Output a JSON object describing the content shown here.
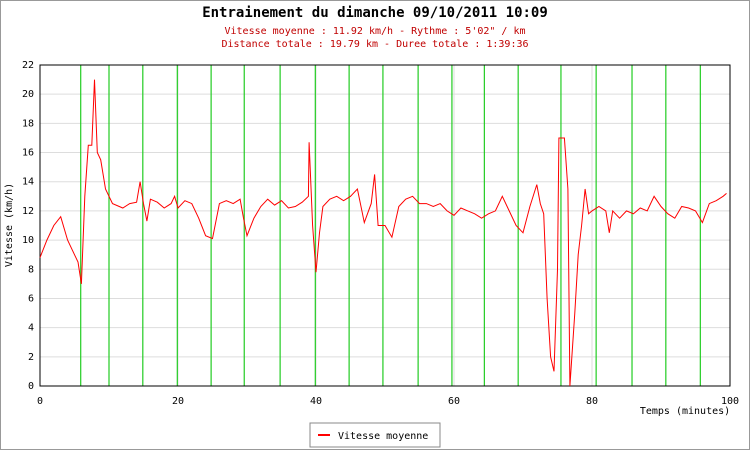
{
  "chart_data": {
    "type": "line",
    "title": "Entrainement du dimanche 09/10/2011 10:09",
    "subtitle": [
      "Vitesse moyenne : 11.92 km/h - Rythme : 5'02\" / km",
      "Distance totale : 19.79 km - Duree totale : 1:39:36"
    ],
    "x_label": "Temps (minutes)",
    "y_label": "Vitesse (km/h)",
    "xlim": [
      0,
      100
    ],
    "xticks": [
      0,
      20,
      40,
      60,
      80,
      100
    ],
    "ylim": [
      0,
      22
    ],
    "yticks": [
      0,
      2,
      4,
      6,
      8,
      10,
      12,
      14,
      16,
      18,
      20,
      22
    ],
    "grid": true,
    "markers_x": [
      5.9,
      10,
      14.9,
      19.9,
      24.8,
      29.6,
      34.8,
      39.9,
      44.8,
      49.7,
      54.8,
      59.7,
      64.4,
      69.3,
      75.5,
      80.6,
      85.8,
      90.7,
      95.7
    ],
    "marker_color": "#22cc22",
    "x": [
      0,
      1,
      2,
      3,
      4,
      5,
      5.5,
      6,
      6.5,
      7,
      7.5,
      7.9,
      8.3,
      8.8,
      9.5,
      10.5,
      12,
      13,
      14,
      14.5,
      15,
      15.5,
      16,
      17,
      18,
      19,
      19.5,
      20,
      21,
      22,
      23,
      24,
      25,
      26,
      27,
      28,
      29,
      29.5,
      30,
      31,
      32,
      33,
      34,
      35,
      36,
      37,
      38,
      38.9,
      39,
      39.5,
      40,
      40.5,
      41,
      42,
      43,
      44,
      45,
      46,
      47,
      48,
      48.5,
      49,
      50,
      51,
      52,
      53,
      54,
      55,
      56,
      57,
      58,
      59,
      60,
      61,
      62,
      63,
      64,
      65,
      66,
      67,
      68,
      69,
      70,
      71,
      72,
      72.5,
      73,
      73.5,
      74,
      74.5,
      75,
      75.2,
      76,
      76.5,
      76.8,
      77.5,
      78,
      78.5,
      79,
      79.5,
      80,
      81,
      82,
      82.5,
      83,
      84,
      85,
      86,
      87,
      88,
      89,
      90,
      91,
      92,
      93,
      94,
      95,
      96,
      97,
      98,
      99,
      99.5
    ],
    "series": [
      {
        "name": "Vitesse moyenne",
        "color": "#ff0000",
        "values": [
          8.8,
          10,
          11,
          11.6,
          10,
          9,
          8.5,
          7,
          13,
          16.5,
          16.5,
          21,
          16,
          15.5,
          13.5,
          12.5,
          12.2,
          12.5,
          12.6,
          14,
          12.5,
          11.3,
          12.8,
          12.6,
          12.2,
          12.5,
          13,
          12.2,
          12.7,
          12.5,
          11.5,
          10.3,
          10.1,
          12.5,
          12.7,
          12.5,
          12.8,
          11.5,
          10.3,
          11.5,
          12.3,
          12.8,
          12.4,
          12.7,
          12.2,
          12.3,
          12.6,
          13,
          16.7,
          11,
          7.8,
          10.5,
          12.3,
          12.8,
          13,
          12.7,
          13,
          13.5,
          11.2,
          12.5,
          14.5,
          11,
          11,
          10.2,
          12.3,
          12.8,
          13,
          12.5,
          12.5,
          12.3,
          12.5,
          12,
          11.7,
          12.2,
          12,
          11.8,
          11.5,
          11.8,
          12,
          13,
          12,
          11,
          10.5,
          12.3,
          13.8,
          12.5,
          11.8,
          6,
          2,
          1,
          8,
          17,
          17,
          13.5,
          0,
          5,
          9,
          11,
          13.5,
          11.8,
          12,
          12.3,
          12,
          10.5,
          12,
          11.5,
          12,
          11.8,
          12.2,
          12,
          13,
          12.3,
          11.8,
          11.5,
          12.3,
          12.2,
          12,
          11.2,
          12.5,
          12.7,
          13,
          13.2
        ]
      }
    ]
  }
}
